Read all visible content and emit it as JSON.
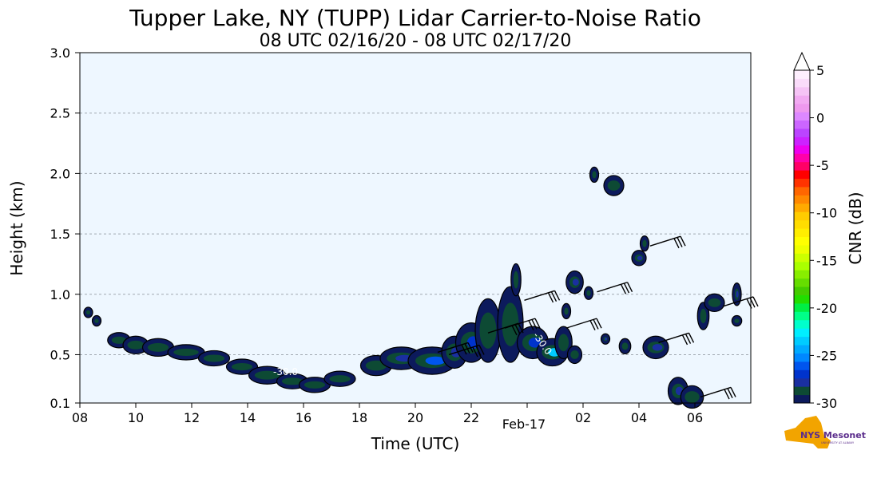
{
  "chart_data": {
    "type": "heatmap",
    "title": "Tupper Lake, NY (TUPP) Lidar Carrier-to-Noise Ratio",
    "subtitle": "08 UTC 02/16/20 - 08 UTC 02/17/20",
    "xlabel": "Time (UTC)",
    "ylabel": "Height (km)",
    "x_range_hours": [
      8,
      32
    ],
    "ylim": [
      0.1,
      3.0
    ],
    "x_ticks": [
      {
        "h": 8,
        "label": "08"
      },
      {
        "h": 10,
        "label": "10"
      },
      {
        "h": 12,
        "label": "12"
      },
      {
        "h": 14,
        "label": "14"
      },
      {
        "h": 16,
        "label": "16"
      },
      {
        "h": 18,
        "label": "18"
      },
      {
        "h": 20,
        "label": "20"
      },
      {
        "h": 22,
        "label": "22"
      },
      {
        "h": 26,
        "label": "02"
      },
      {
        "h": 28,
        "label": "04"
      },
      {
        "h": 30,
        "label": "06"
      }
    ],
    "date_label": {
      "h": 24,
      "label": "Feb-17"
    },
    "y_ticks": [
      {
        "v": 0.1,
        "label": "0.1"
      },
      {
        "v": 0.5,
        "label": "0.5"
      },
      {
        "v": 1.0,
        "label": "1.0"
      },
      {
        "v": 1.5,
        "label": "1.5"
      },
      {
        "v": 2.0,
        "label": "2.0"
      },
      {
        "v": 2.5,
        "label": "2.5"
      },
      {
        "v": 3.0,
        "label": "3.0"
      }
    ],
    "grid": true,
    "colorbar": {
      "label": "CNR (dB)",
      "min": -30,
      "max": 5,
      "ticks": [
        {
          "v": 5,
          "label": "5"
        },
        {
          "v": 0,
          "label": "0"
        },
        {
          "v": -5,
          "label": "-5"
        },
        {
          "v": -10,
          "label": "-10"
        },
        {
          "v": -15,
          "label": "-15"
        },
        {
          "v": -20,
          "label": "-20"
        },
        {
          "v": -25,
          "label": "-25"
        },
        {
          "v": -30,
          "label": "-30"
        }
      ],
      "colors": [
        "#0c1a5c",
        "#0d4a34",
        "#1a2fa0",
        "#0033cc",
        "#0055ee",
        "#0088ff",
        "#00aaff",
        "#00ccff",
        "#00eeff",
        "#00ffcc",
        "#00ff88",
        "#00ee44",
        "#22dd00",
        "#44cc00",
        "#66dd00",
        "#88ee00",
        "#aaff00",
        "#ccff00",
        "#eeff00",
        "#ffff00",
        "#ffee00",
        "#ffdd00",
        "#ffcc00",
        "#ffaa00",
        "#ff8800",
        "#ff6600",
        "#ff3300",
        "#ff0000",
        "#ff0066",
        "#ff00aa",
        "#ee00ee",
        "#cc22ff",
        "#bb44ff",
        "#cc66ff",
        "#dd88ff",
        "#ee99ee",
        "#f2aaf2",
        "#f6c4f6",
        "#fadcfa",
        "#fdeefd"
      ]
    },
    "contour_label": "-30.0",
    "echoes": [
      {
        "t": 8.3,
        "h": 0.85,
        "dt": 0.1,
        "dh": 0.03,
        "c": 0
      },
      {
        "t": 8.6,
        "h": 0.78,
        "dt": 0.1,
        "dh": 0.03,
        "c": 0
      },
      {
        "t": 9.4,
        "h": 0.62,
        "dt": 0.35,
        "dh": 0.05,
        "c": 0
      },
      {
        "t": 10.0,
        "h": 0.58,
        "dt": 0.4,
        "dh": 0.06,
        "c": 1
      },
      {
        "t": 10.8,
        "h": 0.56,
        "dt": 0.5,
        "dh": 0.06,
        "c": 0
      },
      {
        "t": 11.8,
        "h": 0.52,
        "dt": 0.6,
        "dh": 0.05,
        "c": 1
      },
      {
        "t": 12.8,
        "h": 0.47,
        "dt": 0.5,
        "dh": 0.05,
        "c": 0
      },
      {
        "t": 13.8,
        "h": 0.4,
        "dt": 0.5,
        "dh": 0.05,
        "c": 0
      },
      {
        "t": 14.7,
        "h": 0.33,
        "dt": 0.6,
        "dh": 0.06,
        "c": 0
      },
      {
        "t": 15.6,
        "h": 0.28,
        "dt": 0.5,
        "dh": 0.05,
        "c": 0
      },
      {
        "t": 16.4,
        "h": 0.25,
        "dt": 0.5,
        "dh": 0.05,
        "c": 1
      },
      {
        "t": 17.3,
        "h": 0.3,
        "dt": 0.5,
        "dh": 0.05,
        "c": 0
      },
      {
        "t": 18.6,
        "h": 0.41,
        "dt": 0.5,
        "dh": 0.07,
        "c": 0
      },
      {
        "t": 19.5,
        "h": 0.47,
        "dt": 0.7,
        "dh": 0.08,
        "c": 2
      },
      {
        "t": 20.6,
        "h": 0.45,
        "dt": 0.8,
        "dh": 0.1,
        "c": 4
      },
      {
        "t": 21.4,
        "h": 0.52,
        "dt": 0.4,
        "dh": 0.12,
        "c": 2
      },
      {
        "t": 22.0,
        "h": 0.6,
        "dt": 0.5,
        "dh": 0.15,
        "c": 3
      },
      {
        "t": 22.6,
        "h": 0.7,
        "dt": 0.4,
        "dh": 0.25,
        "c": 0
      },
      {
        "t": 23.4,
        "h": 0.75,
        "dt": 0.4,
        "dh": 0.3,
        "c": 1
      },
      {
        "t": 23.6,
        "h": 1.12,
        "dt": 0.12,
        "dh": 0.12,
        "c": 1
      },
      {
        "t": 24.2,
        "h": 0.6,
        "dt": 0.5,
        "dh": 0.12,
        "c": 3
      },
      {
        "t": 24.9,
        "h": 0.52,
        "dt": 0.5,
        "dh": 0.1,
        "c": 7
      },
      {
        "t": 25.3,
        "h": 0.6,
        "dt": 0.25,
        "dh": 0.12,
        "c": 0
      },
      {
        "t": 25.7,
        "h": 0.5,
        "dt": 0.2,
        "dh": 0.06,
        "c": 0
      },
      {
        "t": 25.4,
        "h": 0.86,
        "dt": 0.1,
        "dh": 0.05,
        "c": 1
      },
      {
        "t": 25.7,
        "h": 1.1,
        "dt": 0.25,
        "dh": 0.08,
        "c": 2
      },
      {
        "t": 26.2,
        "h": 1.01,
        "dt": 0.1,
        "dh": 0.04,
        "c": 0
      },
      {
        "t": 26.4,
        "h": 1.99,
        "dt": 0.1,
        "dh": 0.05,
        "c": 0
      },
      {
        "t": 27.1,
        "h": 1.9,
        "dt": 0.3,
        "dh": 0.07,
        "c": 1
      },
      {
        "t": 26.8,
        "h": 0.63,
        "dt": 0.1,
        "dh": 0.03,
        "c": 2
      },
      {
        "t": 27.5,
        "h": 0.57,
        "dt": 0.15,
        "dh": 0.05,
        "c": 0
      },
      {
        "t": 28.0,
        "h": 1.3,
        "dt": 0.2,
        "dh": 0.05,
        "c": 2
      },
      {
        "t": 28.2,
        "h": 1.42,
        "dt": 0.1,
        "dh": 0.05,
        "c": 1
      },
      {
        "t": 28.6,
        "h": 0.56,
        "dt": 0.4,
        "dh": 0.08,
        "c": 2
      },
      {
        "t": 29.4,
        "h": 0.2,
        "dt": 0.3,
        "dh": 0.1,
        "c": 2
      },
      {
        "t": 29.9,
        "h": 0.15,
        "dt": 0.35,
        "dh": 0.08,
        "c": 0
      },
      {
        "t": 30.3,
        "h": 0.82,
        "dt": 0.15,
        "dh": 0.1,
        "c": 1
      },
      {
        "t": 30.7,
        "h": 0.93,
        "dt": 0.3,
        "dh": 0.06,
        "c": 0
      },
      {
        "t": 31.5,
        "h": 1.0,
        "dt": 0.1,
        "dh": 0.08,
        "c": 2
      },
      {
        "t": 31.5,
        "h": 0.78,
        "dt": 0.12,
        "dh": 0.03,
        "c": 0
      }
    ],
    "wind_barbs": [
      {
        "t": 20.8,
        "h": 0.52,
        "dir": 1
      },
      {
        "t": 21.2,
        "h": 0.5,
        "dir": 1
      },
      {
        "t": 22.6,
        "h": 0.68,
        "dir": 1
      },
      {
        "t": 23.2,
        "h": 0.72,
        "dir": 1
      },
      {
        "t": 23.9,
        "h": 0.95,
        "dir": 1
      },
      {
        "t": 25.4,
        "h": 0.72,
        "dir": 1
      },
      {
        "t": 26.5,
        "h": 1.02,
        "dir": 1
      },
      {
        "t": 28.4,
        "h": 1.4,
        "dir": 1
      },
      {
        "t": 28.7,
        "h": 0.6,
        "dir": 1
      },
      {
        "t": 30.2,
        "h": 0.15,
        "dir": 1
      },
      {
        "t": 31.0,
        "h": 0.9,
        "dir": 1
      }
    ]
  },
  "logo": {
    "text": "NYS Mesonet",
    "subtext": "UNIVERSITY AT ALBANY"
  }
}
